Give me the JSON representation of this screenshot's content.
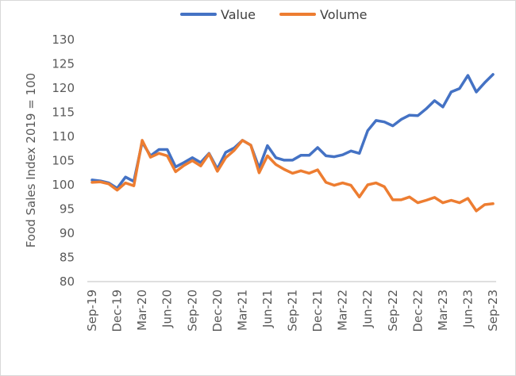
{
  "chart_data": {
    "type": "line",
    "title": "",
    "xlabel": "",
    "ylabel": "Food Sales Index 2019 = 100",
    "ylim": [
      80,
      130
    ],
    "yticks": [
      80,
      85,
      90,
      95,
      100,
      105,
      110,
      115,
      120,
      125,
      130
    ],
    "grid": false,
    "legend": "top",
    "x": [
      "Sep-19",
      "Oct-19",
      "Nov-19",
      "Dec-19",
      "Jan-20",
      "Feb-20",
      "Mar-20",
      "Apr-20",
      "May-20",
      "Jun-20",
      "Jul-20",
      "Aug-20",
      "Sep-20",
      "Oct-20",
      "Nov-20",
      "Dec-20",
      "Jan-21",
      "Feb-21",
      "Mar-21",
      "Apr-21",
      "May-21",
      "Jun-21",
      "Jul-21",
      "Aug-21",
      "Sep-21",
      "Oct-21",
      "Nov-21",
      "Dec-21",
      "Jan-22",
      "Feb-22",
      "Mar-22",
      "Apr-22",
      "May-22",
      "Jun-22",
      "Jul-22",
      "Aug-22",
      "Sep-22",
      "Oct-22",
      "Nov-22",
      "Dec-22",
      "Jan-23",
      "Feb-23",
      "Mar-23",
      "Apr-23",
      "May-23",
      "Jun-23",
      "Jul-23",
      "Aug-23",
      "Sep-23"
    ],
    "xtick_labels": [
      "Sep-19",
      "Dec-19",
      "Mar-20",
      "Jun-20",
      "Sep-20",
      "Dec-20",
      "Mar-21",
      "Jun-21",
      "Sep-21",
      "Dec-21",
      "Mar-22",
      "Jun-22",
      "Sep-22",
      "Dec-22",
      "Mar-23",
      "Jun-23",
      "Sep-23"
    ],
    "series": [
      {
        "name": "Value",
        "color": "#4472C4",
        "values": [
          101.0,
          100.8,
          100.4,
          99.3,
          101.6,
          100.7,
          108.8,
          106.0,
          107.3,
          107.3,
          103.7,
          104.6,
          105.6,
          104.6,
          106.5,
          103.3,
          106.7,
          107.6,
          109.2,
          108.2,
          103.5,
          108.1,
          105.6,
          105.1,
          105.1,
          106.1,
          106.1,
          107.7,
          106.0,
          105.8,
          106.2,
          107.0,
          106.5,
          111.2,
          113.3,
          113.0,
          112.2,
          113.5,
          114.4,
          114.3,
          115.7,
          117.4,
          116.1,
          119.2,
          119.9,
          122.6,
          119.2,
          121.1,
          122.8
        ]
      },
      {
        "name": "Volume",
        "color": "#ED7D31",
        "values": [
          100.5,
          100.6,
          100.2,
          98.9,
          100.4,
          99.8,
          109.2,
          105.7,
          106.5,
          106.0,
          102.7,
          104.0,
          105.0,
          103.9,
          106.4,
          102.8,
          105.6,
          107.1,
          109.2,
          108.2,
          102.5,
          106.0,
          104.2,
          103.2,
          102.4,
          102.9,
          102.4,
          103.1,
          100.5,
          99.9,
          100.4,
          99.9,
          97.5,
          100.0,
          100.4,
          99.6,
          96.9,
          96.9,
          97.5,
          96.3,
          96.8,
          97.4,
          96.3,
          96.8,
          96.3,
          97.2,
          94.6,
          95.9,
          96.1
        ]
      }
    ]
  }
}
